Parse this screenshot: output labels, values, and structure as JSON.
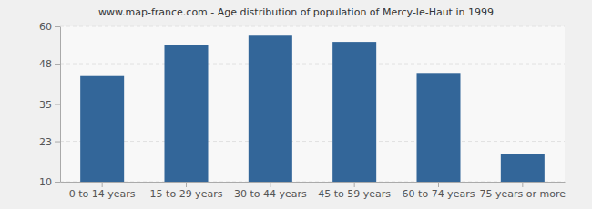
{
  "chart_data": {
    "type": "bar",
    "title": "www.map-france.com - Age distribution of population of Mercy-le-Haut in 1999",
    "categories": [
      "0 to 14 years",
      "15 to 29 years",
      "30 to 44 years",
      "45 to 59 years",
      "60 to 74 years",
      "75 years or more"
    ],
    "values": [
      44,
      54,
      57,
      55,
      45,
      19
    ],
    "color": "#336699",
    "ylim": [
      10,
      60
    ],
    "yticks": [
      10,
      23,
      35,
      48,
      60
    ],
    "grid": true
  }
}
